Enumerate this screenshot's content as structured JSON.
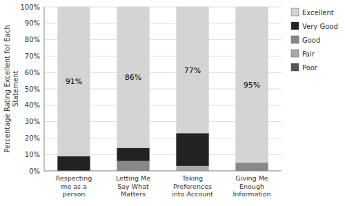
{
  "chart_data": {
    "type": "bar",
    "stacked": true,
    "categories": [
      "Respecting\nme as a\nperson",
      "Letting Me\nSay What\nMatters",
      "Taking\nPreferences\ninto Account",
      "Giving Me\nEnough\nInformation"
    ],
    "series": [
      {
        "name": "Poor",
        "color": "#555555",
        "values": [
          0,
          0,
          0,
          0
        ]
      },
      {
        "name": "Fair",
        "color": "#aaaaaa",
        "values": [
          0,
          0,
          3,
          0
        ]
      },
      {
        "name": "Good",
        "color": "#888888",
        "values": [
          0,
          6,
          0,
          5
        ]
      },
      {
        "name": "Very Good",
        "color": "#222222",
        "values": [
          9,
          8,
          20,
          0
        ]
      },
      {
        "name": "Excellent",
        "color": "#d4d4d4",
        "values": [
          91,
          86,
          77,
          95
        ],
        "data_labels": true,
        "value_labels": [
          "91%",
          "86%",
          "77%",
          "95%"
        ]
      }
    ],
    "ylabel": "Percentage Rating Excellent for Each\nStatement",
    "ylim": [
      0,
      100
    ],
    "yticks": [
      {
        "value": 0,
        "label": "0%"
      },
      {
        "value": 10,
        "label": "10%"
      },
      {
        "value": 20,
        "label": "20%"
      },
      {
        "value": 30,
        "label": "30%"
      },
      {
        "value": 40,
        "label": "40%"
      },
      {
        "value": 50,
        "label": "50%"
      },
      {
        "value": 60,
        "label": "60%"
      },
      {
        "value": 70,
        "label": "70%"
      },
      {
        "value": 80,
        "label": "80%"
      },
      {
        "value": 90,
        "label": "90%"
      },
      {
        "value": 100,
        "label": "100%"
      }
    ],
    "grid": true,
    "legend": "right"
  }
}
